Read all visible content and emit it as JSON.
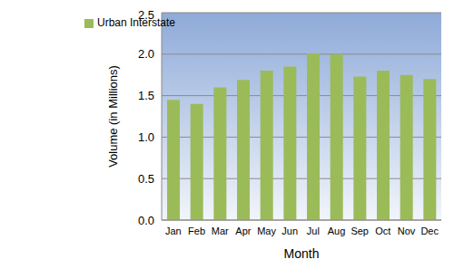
{
  "chart_data": {
    "type": "bar",
    "x_label": "Month",
    "y_label": "Volume (in Millions)",
    "categories": [
      "Jan",
      "Feb",
      "Mar",
      "Apr",
      "May",
      "Jun",
      "Jul",
      "Aug",
      "Sep",
      "Oct",
      "Nov",
      "Dec"
    ],
    "series": [
      {
        "name": "Urban Interstate",
        "color": "#9bbb59",
        "values": [
          1.45,
          1.4,
          1.6,
          1.69,
          1.8,
          1.85,
          2.01,
          2.0,
          1.73,
          1.8,
          1.75,
          1.7
        ]
      }
    ],
    "ylim": [
      0,
      2.5
    ],
    "yticks": [
      {
        "value": 0,
        "label": "0.0"
      },
      0.5,
      {
        "value": 1,
        "label": "1.0"
      },
      1.5,
      {
        "value": 2,
        "label": "2.0"
      },
      2.5
    ],
    "grid": true,
    "legend": "upper left"
  }
}
